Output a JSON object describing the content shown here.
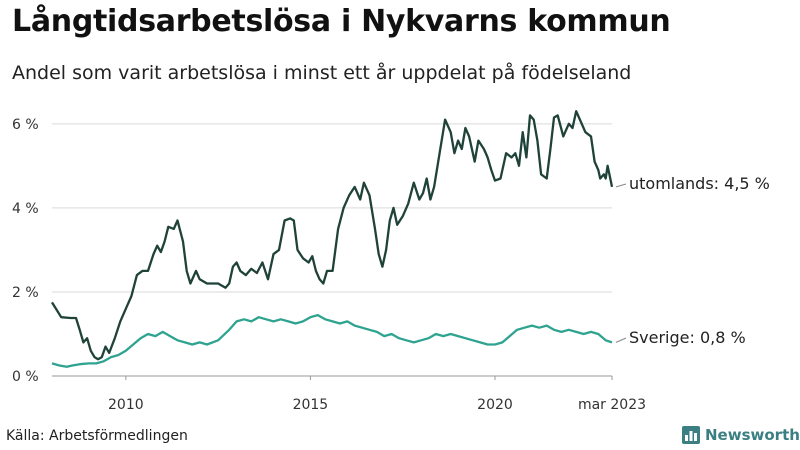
{
  "chart_data": {
    "type": "line",
    "title": "Långtidsarbetslösa i Nykvarns kommun",
    "subtitle": "Andel som varit arbetslösa i minst ett år uppdelat på födelseland",
    "source": "Källa: Arbetsförmedlingen",
    "brand": "Newsworthy",
    "xlim": [
      2008.0,
      2023.17
    ],
    "ylim": [
      0,
      6.4
    ],
    "x_ticks": [
      {
        "value": 2010,
        "label": "2010"
      },
      {
        "value": 2015,
        "label": "2015"
      },
      {
        "value": 2020,
        "label": "2020"
      },
      {
        "value": 2023.17,
        "label": "mar 2023"
      }
    ],
    "y_ticks": [
      {
        "value": 0,
        "label": "0 %"
      },
      {
        "value": 2,
        "label": "2 %"
      },
      {
        "value": 4,
        "label": "4 %"
      },
      {
        "value": 6,
        "label": "6 %"
      }
    ],
    "grid": true,
    "series": [
      {
        "name": "utomlands",
        "end_label": "utomlands: 4,5 %",
        "color": "#1f4239",
        "points": [
          [
            2008.0,
            1.75
          ],
          [
            2008.25,
            1.4
          ],
          [
            2008.5,
            1.38
          ],
          [
            2008.65,
            1.38
          ],
          [
            2008.75,
            1.1
          ],
          [
            2008.85,
            0.8
          ],
          [
            2008.95,
            0.9
          ],
          [
            2009.05,
            0.6
          ],
          [
            2009.15,
            0.45
          ],
          [
            2009.25,
            0.4
          ],
          [
            2009.35,
            0.45
          ],
          [
            2009.45,
            0.7
          ],
          [
            2009.55,
            0.55
          ],
          [
            2009.7,
            0.9
          ],
          [
            2009.85,
            1.3
          ],
          [
            2010.0,
            1.6
          ],
          [
            2010.15,
            1.9
          ],
          [
            2010.3,
            2.4
          ],
          [
            2010.45,
            2.5
          ],
          [
            2010.6,
            2.5
          ],
          [
            2010.75,
            2.9
          ],
          [
            2010.85,
            3.1
          ],
          [
            2010.95,
            2.95
          ],
          [
            2011.05,
            3.2
          ],
          [
            2011.15,
            3.55
          ],
          [
            2011.3,
            3.5
          ],
          [
            2011.4,
            3.7
          ],
          [
            2011.55,
            3.2
          ],
          [
            2011.65,
            2.5
          ],
          [
            2011.75,
            2.2
          ],
          [
            2011.9,
            2.5
          ],
          [
            2012.0,
            2.3
          ],
          [
            2012.2,
            2.2
          ],
          [
            2012.5,
            2.2
          ],
          [
            2012.7,
            2.1
          ],
          [
            2012.8,
            2.2
          ],
          [
            2012.9,
            2.6
          ],
          [
            2013.0,
            2.7
          ],
          [
            2013.1,
            2.5
          ],
          [
            2013.25,
            2.4
          ],
          [
            2013.4,
            2.55
          ],
          [
            2013.55,
            2.45
          ],
          [
            2013.7,
            2.7
          ],
          [
            2013.85,
            2.3
          ],
          [
            2014.0,
            2.9
          ],
          [
            2014.15,
            3.0
          ],
          [
            2014.3,
            3.7
          ],
          [
            2014.45,
            3.75
          ],
          [
            2014.55,
            3.7
          ],
          [
            2014.65,
            3.0
          ],
          [
            2014.8,
            2.8
          ],
          [
            2014.95,
            2.7
          ],
          [
            2015.05,
            2.85
          ],
          [
            2015.15,
            2.5
          ],
          [
            2015.25,
            2.3
          ],
          [
            2015.35,
            2.2
          ],
          [
            2015.45,
            2.5
          ],
          [
            2015.6,
            2.5
          ],
          [
            2015.75,
            3.5
          ],
          [
            2015.9,
            4.0
          ],
          [
            2016.05,
            4.3
          ],
          [
            2016.2,
            4.5
          ],
          [
            2016.35,
            4.2
          ],
          [
            2016.45,
            4.6
          ],
          [
            2016.6,
            4.3
          ],
          [
            2016.75,
            3.5
          ],
          [
            2016.85,
            2.9
          ],
          [
            2016.95,
            2.6
          ],
          [
            2017.05,
            3.0
          ],
          [
            2017.15,
            3.7
          ],
          [
            2017.25,
            4.0
          ],
          [
            2017.35,
            3.6
          ],
          [
            2017.5,
            3.8
          ],
          [
            2017.65,
            4.1
          ],
          [
            2017.8,
            4.6
          ],
          [
            2017.95,
            4.2
          ],
          [
            2018.05,
            4.35
          ],
          [
            2018.15,
            4.7
          ],
          [
            2018.25,
            4.2
          ],
          [
            2018.35,
            4.5
          ],
          [
            2018.5,
            5.3
          ],
          [
            2018.65,
            6.1
          ],
          [
            2018.8,
            5.8
          ],
          [
            2018.9,
            5.3
          ],
          [
            2019.0,
            5.6
          ],
          [
            2019.1,
            5.4
          ],
          [
            2019.2,
            5.9
          ],
          [
            2019.3,
            5.7
          ],
          [
            2019.45,
            5.1
          ],
          [
            2019.55,
            5.6
          ],
          [
            2019.7,
            5.4
          ],
          [
            2019.8,
            5.2
          ],
          [
            2019.9,
            4.9
          ],
          [
            2020.0,
            4.65
          ],
          [
            2020.15,
            4.7
          ],
          [
            2020.3,
            5.3
          ],
          [
            2020.45,
            5.2
          ],
          [
            2020.55,
            5.3
          ],
          [
            2020.65,
            5.0
          ],
          [
            2020.75,
            5.8
          ],
          [
            2020.85,
            5.2
          ],
          [
            2020.95,
            6.2
          ],
          [
            2021.05,
            6.1
          ],
          [
            2021.15,
            5.6
          ],
          [
            2021.25,
            4.8
          ],
          [
            2021.4,
            4.7
          ],
          [
            2021.5,
            5.4
          ],
          [
            2021.6,
            6.15
          ],
          [
            2021.7,
            6.2
          ],
          [
            2021.85,
            5.7
          ],
          [
            2022.0,
            6.0
          ],
          [
            2022.1,
            5.9
          ],
          [
            2022.2,
            6.3
          ],
          [
            2022.3,
            6.1
          ],
          [
            2022.45,
            5.8
          ],
          [
            2022.6,
            5.7
          ],
          [
            2022.7,
            5.1
          ],
          [
            2022.8,
            4.9
          ],
          [
            2022.85,
            4.7
          ],
          [
            2022.95,
            4.8
          ],
          [
            2023.0,
            4.7
          ],
          [
            2023.05,
            5.0
          ],
          [
            2023.1,
            4.8
          ],
          [
            2023.17,
            4.5
          ]
        ]
      },
      {
        "name": "Sverige",
        "end_label": "Sverige: 0,8 %",
        "color": "#2ea38f",
        "points": [
          [
            2008.0,
            0.3
          ],
          [
            2008.2,
            0.25
          ],
          [
            2008.4,
            0.22
          ],
          [
            2008.55,
            0.25
          ],
          [
            2008.75,
            0.28
          ],
          [
            2009.0,
            0.3
          ],
          [
            2009.2,
            0.3
          ],
          [
            2009.4,
            0.35
          ],
          [
            2009.6,
            0.45
          ],
          [
            2009.8,
            0.5
          ],
          [
            2010.0,
            0.6
          ],
          [
            2010.2,
            0.75
          ],
          [
            2010.4,
            0.9
          ],
          [
            2010.6,
            1.0
          ],
          [
            2010.8,
            0.95
          ],
          [
            2011.0,
            1.05
          ],
          [
            2011.2,
            0.95
          ],
          [
            2011.4,
            0.85
          ],
          [
            2011.6,
            0.8
          ],
          [
            2011.8,
            0.75
          ],
          [
            2012.0,
            0.8
          ],
          [
            2012.2,
            0.75
          ],
          [
            2012.5,
            0.85
          ],
          [
            2012.8,
            1.1
          ],
          [
            2013.0,
            1.3
          ],
          [
            2013.2,
            1.35
          ],
          [
            2013.4,
            1.3
          ],
          [
            2013.6,
            1.4
          ],
          [
            2013.8,
            1.35
          ],
          [
            2014.0,
            1.3
          ],
          [
            2014.2,
            1.35
          ],
          [
            2014.4,
            1.3
          ],
          [
            2014.6,
            1.25
          ],
          [
            2014.8,
            1.3
          ],
          [
            2015.0,
            1.4
          ],
          [
            2015.2,
            1.45
          ],
          [
            2015.4,
            1.35
          ],
          [
            2015.6,
            1.3
          ],
          [
            2015.8,
            1.25
          ],
          [
            2016.0,
            1.3
          ],
          [
            2016.2,
            1.2
          ],
          [
            2016.4,
            1.15
          ],
          [
            2016.6,
            1.1
          ],
          [
            2016.8,
            1.05
          ],
          [
            2017.0,
            0.95
          ],
          [
            2017.2,
            1.0
          ],
          [
            2017.4,
            0.9
          ],
          [
            2017.6,
            0.85
          ],
          [
            2017.8,
            0.8
          ],
          [
            2018.0,
            0.85
          ],
          [
            2018.2,
            0.9
          ],
          [
            2018.4,
            1.0
          ],
          [
            2018.6,
            0.95
          ],
          [
            2018.8,
            1.0
          ],
          [
            2019.0,
            0.95
          ],
          [
            2019.2,
            0.9
          ],
          [
            2019.4,
            0.85
          ],
          [
            2019.6,
            0.8
          ],
          [
            2019.8,
            0.75
          ],
          [
            2020.0,
            0.75
          ],
          [
            2020.2,
            0.8
          ],
          [
            2020.4,
            0.95
          ],
          [
            2020.6,
            1.1
          ],
          [
            2020.8,
            1.15
          ],
          [
            2021.0,
            1.2
          ],
          [
            2021.2,
            1.15
          ],
          [
            2021.4,
            1.2
          ],
          [
            2021.6,
            1.1
          ],
          [
            2021.8,
            1.05
          ],
          [
            2022.0,
            1.1
          ],
          [
            2022.2,
            1.05
          ],
          [
            2022.4,
            1.0
          ],
          [
            2022.6,
            1.05
          ],
          [
            2022.8,
            1.0
          ],
          [
            2023.0,
            0.85
          ],
          [
            2023.17,
            0.8
          ]
        ]
      }
    ]
  }
}
